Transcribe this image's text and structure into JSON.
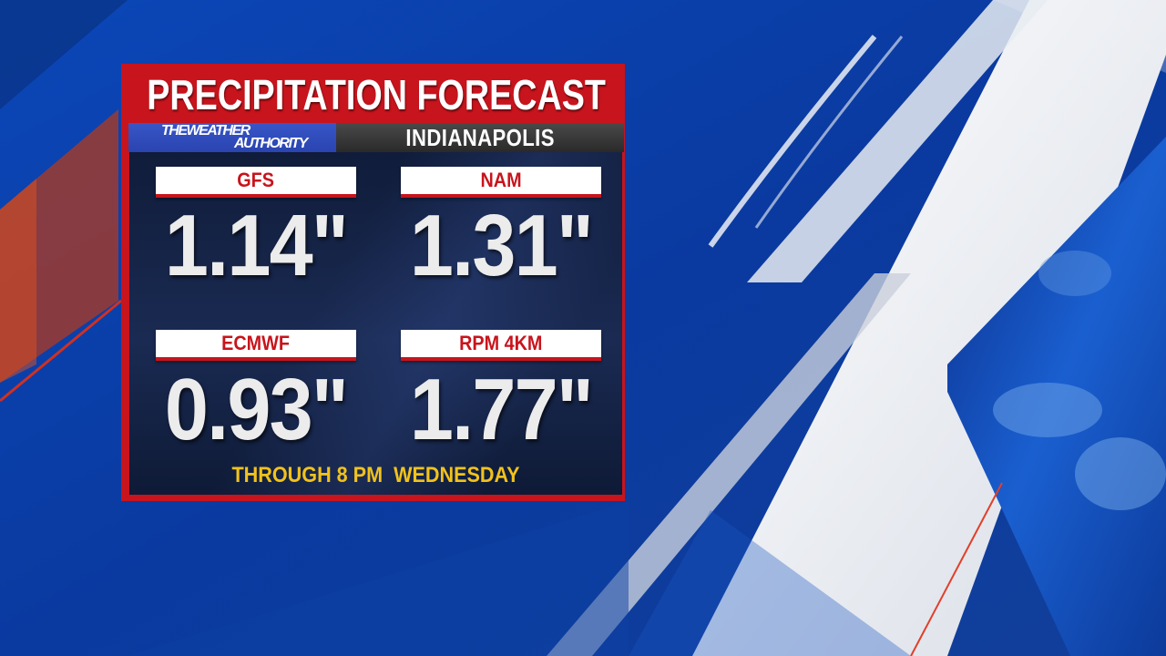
{
  "title": "PRECIPITATION FORECAST",
  "brand": {
    "line1": "THEWEATHER",
    "line2": "AUTHORITY"
  },
  "city": "INDIANAPOLIS",
  "models": [
    {
      "label": "GFS",
      "value": "1.14\""
    },
    {
      "label": "NAM",
      "value": "1.31\""
    },
    {
      "label": "ECMWF",
      "value": "0.93\""
    },
    {
      "label": "RPM 4KM",
      "value": "1.77\""
    }
  ],
  "footer": "THROUGH 8 PM  WEDNESDAY",
  "colors": {
    "accent_red": "#c8141c",
    "footer_yellow": "#f2c21b",
    "background_blue": "#0a3c9e"
  }
}
